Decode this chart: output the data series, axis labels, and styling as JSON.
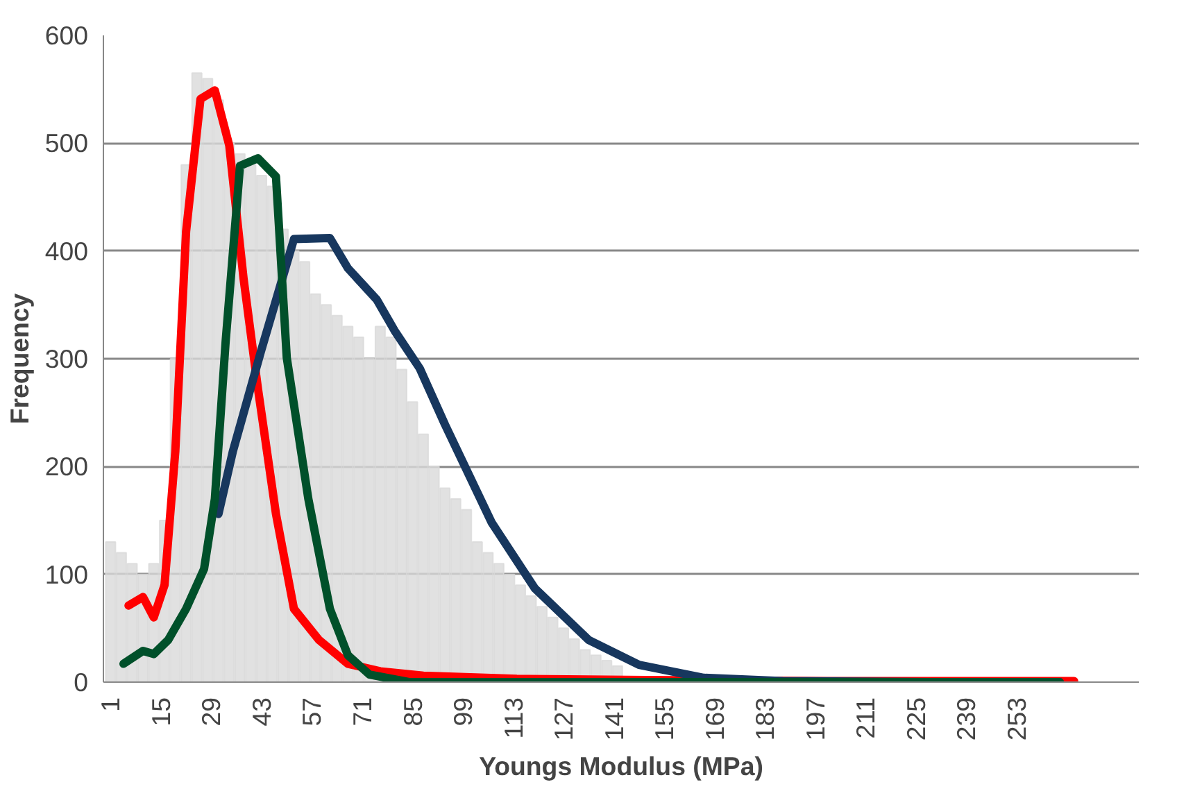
{
  "chart_data": {
    "type": "line",
    "xlabel": "Youngs Modulus (MPa)",
    "ylabel": "Frequency",
    "xlim": [
      -1,
      287
    ],
    "ylim": [
      0,
      600
    ],
    "xticks": [
      1,
      15,
      29,
      43,
      57,
      71,
      85,
      99,
      113,
      127,
      141,
      155,
      169,
      183,
      197,
      211,
      225,
      239,
      253
    ],
    "yticks": [
      0,
      100,
      200,
      300,
      400,
      500,
      600
    ],
    "grid": "y",
    "line_style": "solid",
    "marker": "none",
    "series": [
      {
        "type": "bar",
        "color": "#d9d9d9",
        "x": [
          1,
          4,
          7,
          10,
          13,
          16,
          19,
          22,
          25,
          28,
          31,
          34,
          37,
          40,
          43,
          46,
          49,
          52,
          55,
          58,
          61,
          64,
          67,
          70,
          73,
          76,
          79,
          82,
          85,
          88,
          91,
          94,
          97,
          100,
          103,
          106,
          109,
          112,
          115,
          118,
          121,
          124,
          127,
          130,
          133,
          136,
          139,
          142
        ],
        "values": [
          130,
          120,
          110,
          100,
          110,
          150,
          300,
          480,
          565,
          560,
          540,
          500,
          490,
          480,
          470,
          460,
          420,
          400,
          390,
          360,
          350,
          340,
          330,
          320,
          300,
          330,
          320,
          290,
          260,
          230,
          200,
          180,
          170,
          160,
          130,
          120,
          110,
          100,
          90,
          80,
          70,
          60,
          50,
          40,
          30,
          25,
          20,
          15
        ]
      },
      {
        "color": "#ff0000",
        "x": [
          6,
          10,
          13,
          16,
          19,
          22,
          26,
          30,
          34,
          38,
          42,
          47,
          52,
          59,
          67,
          76,
          88,
          114,
          150,
          200,
          269
        ],
        "values": [
          71,
          79,
          60,
          90,
          214,
          418,
          541,
          549,
          498,
          374,
          272,
          156,
          68,
          39,
          17,
          10,
          6,
          3,
          2,
          1,
          1
        ]
      },
      {
        "color": "#17375e",
        "x": [
          31,
          35,
          43,
          52,
          62,
          67,
          75,
          80,
          87,
          94,
          107,
          119,
          134,
          148,
          166,
          188,
          230,
          265
        ],
        "values": [
          156,
          214,
          309,
          411,
          412,
          384,
          355,
          326,
          291,
          239,
          148,
          87,
          39,
          16,
          4,
          1,
          0,
          0
        ]
      },
      {
        "color": "#00502a",
        "x": [
          4.6,
          10,
          13,
          17,
          22,
          27,
          30,
          33,
          37,
          42,
          47,
          50,
          56,
          62,
          67,
          73,
          84,
          150,
          265
        ],
        "values": [
          17,
          29,
          26,
          39,
          68,
          105,
          170,
          316,
          479,
          486,
          469,
          301,
          170,
          68,
          25,
          7,
          0,
          0,
          0
        ]
      }
    ]
  }
}
